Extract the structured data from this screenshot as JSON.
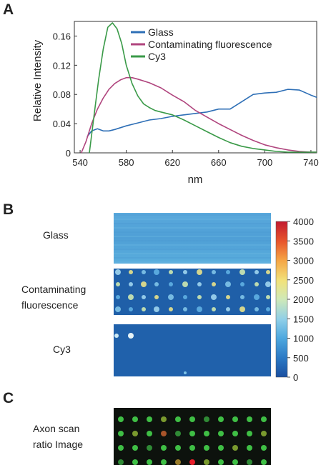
{
  "panels": {
    "a": {
      "letter": "A"
    },
    "b": {
      "letter": "B"
    },
    "c": {
      "letter": "C"
    }
  },
  "chart_data": [
    {
      "type": "line",
      "xlabel": "nm",
      "ylabel": "Relative Intensity",
      "xlim": [
        535,
        745
      ],
      "ylim": [
        0,
        0.18
      ],
      "xticks": [
        540,
        580,
        620,
        660,
        700,
        740
      ],
      "yticks": [
        0,
        0.04,
        0.08,
        0.12,
        0.16
      ],
      "ytick_labels": [
        "0",
        "0.04",
        "0.08",
        "0.12",
        "0.16"
      ],
      "legend_position": "top-right",
      "series": [
        {
          "name": "Glass",
          "color": "#2e6fb6",
          "x": [
            546,
            550,
            555,
            560,
            565,
            570,
            580,
            590,
            600,
            610,
            620,
            630,
            640,
            650,
            660,
            670,
            680,
            690,
            700,
            710,
            720,
            730,
            740,
            745
          ],
          "y": [
            0.022,
            0.03,
            0.033,
            0.03,
            0.03,
            0.032,
            0.037,
            0.041,
            0.045,
            0.047,
            0.05,
            0.052,
            0.054,
            0.056,
            0.06,
            0.06,
            0.07,
            0.08,
            0.082,
            0.083,
            0.087,
            0.086,
            0.079,
            0.076
          ]
        },
        {
          "name": "Contaminating fluorescence",
          "color": "#b0457e",
          "x": [
            541,
            545,
            550,
            555,
            560,
            565,
            570,
            575,
            580,
            585,
            590,
            600,
            610,
            620,
            630,
            640,
            650,
            660,
            670,
            680,
            690,
            700,
            710,
            720,
            730,
            740,
            745
          ],
          "y": [
            0.0,
            0.015,
            0.04,
            0.06,
            0.075,
            0.087,
            0.095,
            0.1,
            0.103,
            0.103,
            0.101,
            0.096,
            0.089,
            0.079,
            0.07,
            0.058,
            0.049,
            0.04,
            0.032,
            0.024,
            0.017,
            0.011,
            0.007,
            0.004,
            0.002,
            0.001,
            0.001
          ]
        },
        {
          "name": "Cy3",
          "color": "#3a9a48",
          "x": [
            548,
            552,
            556,
            560,
            564,
            568,
            572,
            576,
            580,
            585,
            590,
            595,
            600,
            605,
            610,
            620,
            630,
            640,
            650,
            660,
            670,
            680,
            690,
            700,
            710,
            720,
            730,
            740,
            745
          ],
          "y": [
            0.0,
            0.05,
            0.1,
            0.142,
            0.172,
            0.178,
            0.17,
            0.15,
            0.12,
            0.095,
            0.078,
            0.067,
            0.062,
            0.058,
            0.056,
            0.052,
            0.045,
            0.037,
            0.029,
            0.021,
            0.014,
            0.009,
            0.006,
            0.004,
            0.002,
            0.001,
            0.001,
            0.001,
            0.001
          ]
        }
      ]
    },
    {
      "type": "heatmap",
      "rows": [
        "Glass",
        "Contaminating fluorescence",
        "Cy3"
      ],
      "colorbar": {
        "range": [
          0,
          4000
        ],
        "ticks": [
          0,
          500,
          1000,
          1500,
          2000,
          2500,
          3000,
          3500,
          4000
        ]
      }
    },
    {
      "type": "heatmap",
      "label": "Axon scan ratio Image"
    }
  ],
  "panelB": {
    "glass_label": "Glass",
    "contam_label_line1": "Contaminating",
    "contam_label_line2": "fluorescence",
    "cy3_label": "Cy3"
  },
  "panelC": {
    "label_line1": "Axon scan",
    "label_line2": "ratio Image"
  }
}
